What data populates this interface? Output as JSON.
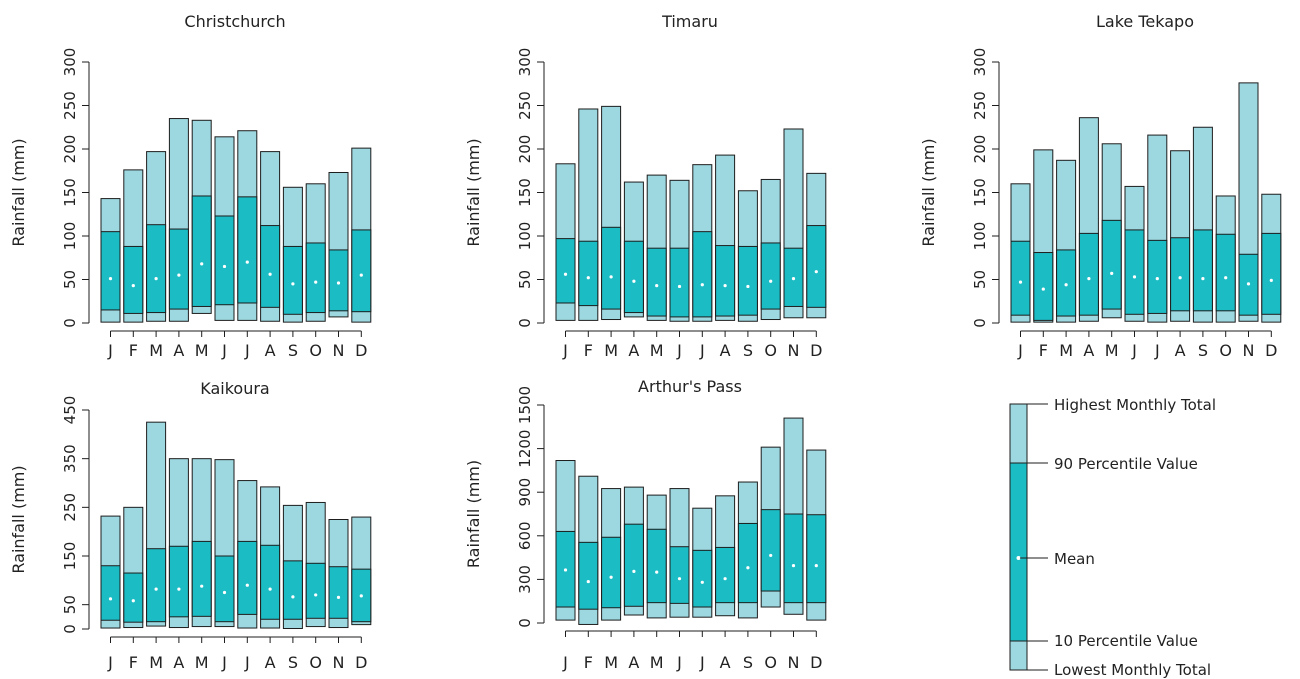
{
  "colors": {
    "range_fill": "#9dd8e0",
    "percentile_fill": "#1cbcc4",
    "mean_dot": "#ffffff",
    "stroke": "#1d1d1d"
  },
  "months": [
    "J",
    "F",
    "M",
    "A",
    "M",
    "J",
    "J",
    "A",
    "S",
    "O",
    "N",
    "D"
  ],
  "chart_data": [
    {
      "type": "bar",
      "title": "Christchurch",
      "ylabel": "Rainfall (mm)",
      "yticks": [
        0,
        50,
        100,
        150,
        200,
        250,
        300
      ],
      "ylim": [
        0,
        300
      ],
      "max": [
        143,
        176,
        197,
        235,
        233,
        214,
        221,
        197,
        156,
        160,
        173,
        201
      ],
      "p90": [
        105,
        88,
        113,
        108,
        146,
        123,
        145,
        112,
        88,
        92,
        84,
        107
      ],
      "mean": [
        51,
        43,
        51,
        55,
        68,
        65,
        70,
        56,
        45,
        47,
        46,
        55
      ],
      "p10": [
        15,
        11,
        12,
        16,
        19,
        21,
        23,
        18,
        10,
        12,
        14,
        13
      ],
      "min": [
        1,
        1,
        2,
        2,
        11,
        3,
        3,
        2,
        1,
        2,
        7,
        1
      ]
    },
    {
      "type": "bar",
      "title": "Timaru",
      "ylabel": "Rainfall (mm)",
      "yticks": [
        0,
        50,
        100,
        150,
        200,
        250,
        300
      ],
      "ylim": [
        0,
        300
      ],
      "max": [
        183,
        246,
        249,
        162,
        170,
        164,
        182,
        193,
        152,
        165,
        223,
        172
      ],
      "p90": [
        97,
        94,
        110,
        94,
        86,
        86,
        105,
        89,
        88,
        92,
        86,
        112
      ],
      "mean": [
        56,
        52,
        53,
        48,
        43,
        42,
        44,
        43,
        42,
        48,
        51,
        59
      ],
      "p10": [
        23,
        20,
        16,
        12,
        8,
        7,
        7,
        8,
        9,
        16,
        19,
        18
      ],
      "min": [
        3,
        3,
        4,
        7,
        3,
        2,
        2,
        3,
        2,
        4,
        6,
        6
      ]
    },
    {
      "type": "bar",
      "title": "Lake Tekapo",
      "ylabel": "Rainfall (mm)",
      "yticks": [
        0,
        50,
        100,
        150,
        200,
        250,
        300
      ],
      "ylim": [
        0,
        300
      ],
      "max": [
        160,
        199,
        187,
        236,
        206,
        157,
        216,
        198,
        225,
        146,
        276,
        148
      ],
      "p90": [
        94,
        81,
        84,
        103,
        118,
        107,
        95,
        98,
        107,
        102,
        79,
        103
      ],
      "mean": [
        47,
        39,
        44,
        51,
        57,
        53,
        51,
        52,
        51,
        52,
        45,
        49
      ],
      "p10": [
        9,
        3,
        8,
        9,
        16,
        10,
        11,
        14,
        14,
        14,
        9,
        10
      ],
      "min": [
        1,
        1,
        1,
        2,
        6,
        2,
        1,
        2,
        1,
        1,
        2,
        1
      ]
    },
    {
      "type": "bar",
      "title": "Kaikoura",
      "ylabel": "Rainfall (mm)",
      "yticks": [
        0,
        50,
        150,
        250,
        350,
        450
      ],
      "ylim": [
        0,
        450
      ],
      "max": [
        232,
        250,
        425,
        350,
        350,
        348,
        305,
        292,
        254,
        260,
        225,
        230
      ],
      "p90": [
        130,
        115,
        165,
        170,
        180,
        150,
        180,
        172,
        140,
        135,
        128,
        123
      ],
      "mean": [
        62,
        58,
        82,
        82,
        88,
        75,
        90,
        82,
        66,
        70,
        65,
        68
      ],
      "p10": [
        18,
        14,
        15,
        25,
        26,
        15,
        30,
        20,
        20,
        22,
        22,
        15
      ],
      "min": [
        2,
        3,
        6,
        3,
        5,
        5,
        2,
        2,
        1,
        5,
        3,
        9
      ]
    },
    {
      "type": "bar",
      "title": "Arthur's Pass",
      "ylabel": "Rainfall (mm)",
      "yticks": [
        0,
        300,
        600,
        900,
        1200,
        1500
      ],
      "ylim": [
        0,
        1500
      ],
      "max": [
        1118,
        1010,
        925,
        935,
        880,
        925,
        790,
        875,
        970,
        1210,
        1410,
        1190
      ],
      "p90": [
        630,
        555,
        590,
        680,
        645,
        525,
        500,
        520,
        685,
        780,
        750,
        745
      ],
      "mean": [
        365,
        285,
        315,
        355,
        350,
        305,
        280,
        305,
        380,
        465,
        395,
        395
      ],
      "p10": [
        110,
        95,
        105,
        115,
        140,
        135,
        110,
        140,
        140,
        220,
        140,
        140
      ],
      "min": [
        20,
        -10,
        20,
        55,
        35,
        40,
        40,
        50,
        35,
        110,
        60,
        20
      ]
    }
  ],
  "legend": {
    "highest": "Highest Monthly Total",
    "p90": "90 Percentile Value",
    "mean": "Mean",
    "p10": "10 Percentile Value",
    "lowest": "Lowest Monthly Total"
  }
}
